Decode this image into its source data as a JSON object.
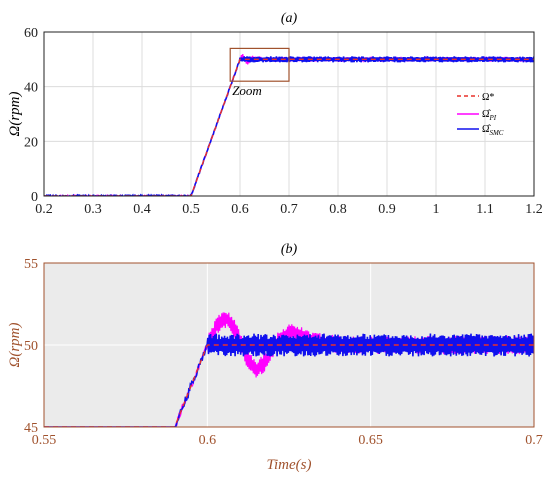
{
  "chart_data": [
    {
      "panel": "(a)",
      "type": "line",
      "title": "(a)",
      "xlabel": "",
      "ylabel": "Ω(rpm)",
      "xlim": [
        0.2,
        1.2
      ],
      "ylim": [
        0,
        60
      ],
      "xticks": [
        "0.2",
        "0.3",
        "0.4",
        "0.5",
        "0.6",
        "0.7",
        "0.8",
        "0.9",
        "1",
        "1.1",
        "1.2"
      ],
      "yticks": [
        "0",
        "20",
        "40",
        "60"
      ],
      "grid": true,
      "legend_position": "right",
      "annotation": "Zoom",
      "zoom_box": {
        "x": [
          0.58,
          0.7
        ],
        "y": [
          42,
          54
        ]
      },
      "series": [
        {
          "name": "Ω*",
          "style": "dashed",
          "color": "#e8302a",
          "x": [
            0.2,
            0.5,
            0.6,
            1.2
          ],
          "y": [
            0,
            0,
            50,
            50
          ]
        },
        {
          "name": "Ω̂PI",
          "style": "solid",
          "color": "#ff00ff",
          "x": [
            0.2,
            0.5,
            0.6,
            0.605,
            0.615,
            0.625,
            0.65,
            1.2
          ],
          "y": [
            0,
            0,
            50,
            51.5,
            48.5,
            50.5,
            50,
            50
          ]
        },
        {
          "name": "Ω̂SMC",
          "style": "solid",
          "color": "#1010ee",
          "x": [
            0.2,
            0.5,
            0.6,
            1.2
          ],
          "y": [
            0,
            0,
            50,
            50
          ]
        }
      ],
      "legend_labels": [
        {
          "main": "Ω*",
          "sub": ""
        },
        {
          "main": "Ω̂",
          "sub": "PI"
        },
        {
          "main": "Ω̂",
          "sub": "SMC"
        }
      ]
    },
    {
      "panel": "(b)",
      "type": "line",
      "title": "(b)",
      "xlabel": "Time(s)",
      "ylabel": "Ω(rpm)",
      "xlim": [
        0.55,
        0.7
      ],
      "ylim": [
        45,
        55
      ],
      "xticks": [
        "0.55",
        "0.6",
        "0.65",
        "0.7"
      ],
      "yticks": [
        "45",
        "50",
        "55"
      ],
      "grid": true,
      "series": [
        {
          "name": "Ω*",
          "style": "dashed",
          "color": "#e8302a",
          "x": [
            0.59,
            0.6,
            0.7
          ],
          "y": [
            45,
            50,
            50
          ]
        },
        {
          "name": "Ω̂PI",
          "style": "solid",
          "color": "#ff00ff",
          "x": [
            0.59,
            0.6,
            0.603,
            0.606,
            0.609,
            0.612,
            0.615,
            0.618,
            0.622,
            0.626,
            0.632,
            0.64,
            0.7
          ],
          "y": [
            45,
            50,
            51.2,
            51.6,
            50.8,
            49.2,
            48.5,
            49.0,
            50.4,
            50.8,
            50.3,
            50.0,
            50.0
          ]
        },
        {
          "name": "Ω̂SMC",
          "style": "solid",
          "color": "#1010ee",
          "x": [
            0.59,
            0.6,
            0.7
          ],
          "y": [
            45,
            50,
            50
          ]
        }
      ]
    }
  ]
}
